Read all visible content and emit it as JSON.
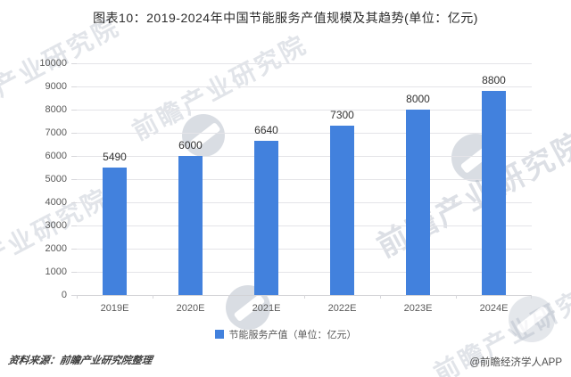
{
  "chart_data": {
    "type": "bar",
    "title": "图表10：2019-2024年中国节能服务产值规模及其趋势(单位：亿元)",
    "categories": [
      "2019E",
      "2020E",
      "2021E",
      "2022E",
      "2023E",
      "2024E"
    ],
    "values": [
      5490,
      6000,
      6640,
      7300,
      8000,
      8800
    ],
    "data_labels": [
      5490,
      6000,
      6640,
      7300,
      8000,
      8800
    ],
    "legend": [
      "节能服务产值（单位：亿元）"
    ],
    "legend_position": "bottom",
    "xlabel": "",
    "ylabel": "",
    "ylim": [
      0,
      10000
    ],
    "ytick_step": 1000,
    "yticklabels": [
      "0",
      "1000",
      "2000",
      "3000",
      "4000",
      "5000",
      "6000",
      "7000",
      "8000",
      "9000",
      "10000"
    ],
    "grid": true,
    "bar_color": "#4281DD",
    "axis_label_color": "#595959",
    "gridline_color": "#e4e4e8"
  },
  "footer": {
    "source": "资料来源：前瞻产业研究院整理",
    "credit": "@前瞻经济学人APP"
  },
  "watermark": {
    "text": "前瞻产业研究院"
  }
}
